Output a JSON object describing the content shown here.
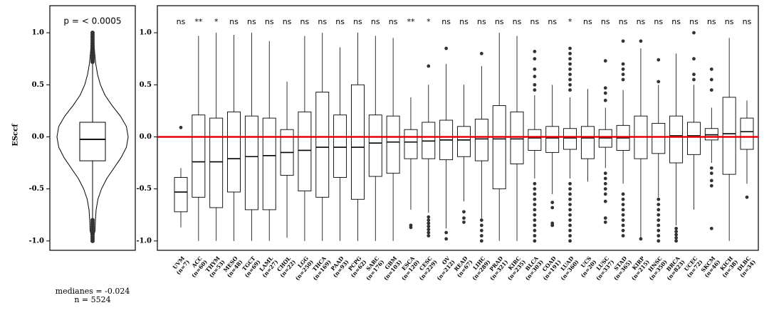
{
  "chart_data": [
    {
      "type": "violin",
      "ylabel": "ESccf",
      "annotation": "p = < 0.0005",
      "annotation_color": "#e8000b",
      "ylim": [
        -1.09,
        1.26
      ],
      "yticks": [
        {
          "value": -1,
          "label": "-1.0"
        },
        {
          "value": -0.5,
          "label": "-0.5"
        },
        {
          "value": 0,
          "label": "0.0"
        },
        {
          "value": 0.5,
          "label": "0.5"
        },
        {
          "value": 1,
          "label": "1.0"
        }
      ],
      "density_y": [
        -1,
        -0.9,
        -0.8,
        -0.7,
        -0.6,
        -0.5,
        -0.4,
        -0.3,
        -0.2,
        -0.1,
        0,
        0.1,
        0.2,
        0.3,
        0.4,
        0.5,
        0.6,
        0.7,
        0.8,
        0.9,
        1
      ],
      "density": [
        0,
        0.07,
        0.08,
        0.1,
        0.15,
        0.25,
        0.4,
        0.6,
        0.8,
        0.95,
        1,
        0.95,
        0.78,
        0.55,
        0.35,
        0.22,
        0.14,
        0.09,
        0.06,
        0.04,
        0
      ],
      "q1": -0.23,
      "median": -0.024,
      "q3": 0.14,
      "whisker_low": -0.78,
      "whisker_high": 0.7,
      "outliers": [
        0.72,
        0.74,
        0.76,
        0.78,
        0.8,
        0.82,
        0.84,
        0.86,
        0.88,
        0.9,
        0.92,
        0.94,
        0.96,
        0.98,
        1,
        -0.8,
        -0.82,
        -0.84,
        -0.86,
        -0.88,
        -0.9,
        -0.92,
        -0.94,
        -0.96,
        -0.98,
        -1
      ],
      "footnotes": [
        "medianes = -0.024",
        "n = 5524"
      ]
    },
    {
      "type": "box",
      "categories": [
        "UVM",
        "ACC",
        "THYM",
        "MESO",
        "TGCT",
        "LAML",
        "CHOL",
        "LGG",
        "THCA",
        "PAAD",
        "PCPG",
        "SARC",
        "GBM",
        "ESCA",
        "CESC",
        "OV",
        "READ",
        "LIHC",
        "PRAD",
        "KIRC",
        "BLCA",
        "COAD",
        "LUAD",
        "UCS",
        "LUSC",
        "STAD",
        "KIRP",
        "HNSC",
        "BRCA",
        "UCEC",
        "SKCM",
        "KICH",
        "DLBC"
      ],
      "n_labels": [
        "(n=7)",
        "(n=60)",
        "(n=53)",
        "(n=48)",
        "(n=69)",
        "(n=27)",
        "(n=22)",
        "(n=250)",
        "(n=169)",
        "(n=93)",
        "(n=62)",
        "(n=176)",
        "(n=103)",
        "(n=120)",
        "(n=229)",
        "(n=212)",
        "(n=67)",
        "(n=289)",
        "(n=321)",
        "(n=235)",
        "(n=303)",
        "(n=191)",
        "(n=360)",
        "(n=20)",
        "(n=337)",
        "(n=365)",
        "(n=215)",
        "(n=350)",
        "(n=823)",
        "(n=72)",
        "(n=46)",
        "(n=38)",
        "(n=34)"
      ],
      "significance": [
        "ns",
        "**",
        "*",
        "ns",
        "ns",
        "ns",
        "ns",
        "ns",
        "ns",
        "ns",
        "ns",
        "ns",
        "ns",
        "**",
        "*",
        "ns",
        "ns",
        "ns",
        "ns",
        "ns",
        "ns",
        "ns",
        "*",
        "ns",
        "ns",
        "ns",
        "ns",
        "ns",
        "ns",
        "ns",
        "ns",
        "ns",
        "ns"
      ],
      "q1": [
        -0.72,
        -0.58,
        -0.68,
        -0.53,
        -0.7,
        -0.7,
        -0.37,
        -0.52,
        -0.58,
        -0.39,
        -0.6,
        -0.38,
        -0.35,
        -0.21,
        -0.21,
        -0.22,
        -0.19,
        -0.23,
        -0.5,
        -0.26,
        -0.13,
        -0.15,
        -0.12,
        -0.21,
        -0.1,
        -0.13,
        -0.21,
        -0.16,
        -0.25,
        -0.17,
        -0.03,
        -0.36,
        -0.12
      ],
      "median": [
        -0.53,
        -0.24,
        -0.24,
        -0.21,
        -0.19,
        -0.18,
        -0.15,
        -0.13,
        -0.1,
        -0.1,
        -0.1,
        -0.06,
        -0.05,
        -0.05,
        -0.04,
        -0.03,
        -0.03,
        -0.02,
        -0.02,
        -0.02,
        -0.01,
        -0.01,
        -0.01,
        -0.01,
        -0.01,
        -0.01,
        0,
        0,
        0.01,
        0.01,
        0.02,
        0.03,
        0.05
      ],
      "q3": [
        -0.39,
        0.21,
        0.18,
        0.24,
        0.2,
        0.18,
        0.07,
        0.24,
        0.43,
        0.21,
        0.5,
        0.21,
        0.2,
        0.07,
        0.14,
        0.16,
        0.1,
        0.17,
        0.3,
        0.24,
        0.07,
        0.1,
        0.08,
        0.1,
        0.07,
        0.11,
        0.2,
        0.13,
        0.2,
        0.14,
        0.08,
        0.38,
        0.18
      ],
      "whisker_low": [
        -0.87,
        -1,
        -1,
        -1,
        -1,
        -1,
        -0.97,
        -1,
        -1,
        -1,
        -1,
        -1,
        -1,
        -0.7,
        -0.73,
        -0.88,
        -0.62,
        -0.78,
        -1,
        -1,
        -0.4,
        -0.55,
        -0.4,
        -0.43,
        -0.3,
        -0.45,
        -0.97,
        -0.58,
        -0.85,
        -0.7,
        -0.25,
        -1,
        -0.45
      ],
      "whisker_high": [
        -0.3,
        0.97,
        1,
        0.98,
        1,
        0.92,
        0.53,
        0.97,
        1,
        0.86,
        1,
        0.97,
        0.95,
        0.38,
        0.5,
        0.7,
        0.5,
        0.68,
        1,
        0.97,
        0.4,
        0.5,
        0.38,
        0.46,
        0.28,
        0.45,
        0.85,
        0.5,
        0.8,
        0.5,
        0.28,
        0.95,
        0.35
      ],
      "outliers": [
        [
          0.09
        ],
        [],
        [],
        [],
        [],
        [],
        [],
        [],
        [],
        [],
        [],
        [],
        [],
        [
          -0.85,
          -0.87
        ],
        [
          0.68,
          -0.77,
          -0.8,
          -0.83,
          -0.86,
          -0.89,
          -0.92,
          -0.95
        ],
        [
          0.85,
          -0.92,
          -0.98
        ],
        [
          -0.72,
          -0.78,
          -0.82
        ],
        [
          0.8,
          -0.8,
          -0.85,
          -0.9,
          -0.95,
          -1
        ],
        [],
        [],
        [
          0.82,
          0.75,
          0.65,
          0.58,
          0.5,
          0.45,
          -0.45,
          -0.5,
          -0.55,
          -0.6,
          -0.65,
          -0.7,
          -0.75,
          -0.8,
          -0.85,
          -0.9,
          -0.95,
          -1
        ],
        [
          -0.63,
          -0.68,
          -0.83,
          -0.85
        ],
        [
          0.85,
          0.8,
          0.75,
          0.7,
          0.65,
          0.6,
          0.55,
          0.5,
          0.45,
          -0.45,
          -0.5,
          -0.55,
          -0.6,
          -0.65,
          -0.7,
          -0.75,
          -0.8,
          -0.85,
          -0.9,
          -0.95,
          -1
        ],
        [],
        [
          0.73,
          0.47,
          0.42,
          0.35,
          -0.35,
          -0.4,
          -0.45,
          -0.5,
          -0.55,
          -0.62,
          -0.78,
          -0.82
        ],
        [
          0.92,
          0.7,
          0.65,
          0.6,
          0.55,
          -0.55,
          -0.6,
          -0.65,
          -0.7,
          -0.75,
          -0.8,
          -0.85,
          -0.9,
          -0.95
        ],
        [
          0.92,
          -0.98
        ],
        [
          0.74,
          0.53,
          -0.6,
          -0.65,
          -0.7,
          -0.75,
          -0.8,
          -0.85,
          -0.9,
          -0.95,
          -1
        ],
        [
          -0.88,
          -0.91,
          -0.94,
          -0.97,
          -1
        ],
        [
          1,
          0.75,
          0.6,
          0.55
        ],
        [
          0.65,
          0.55,
          0.45,
          -0.3,
          -0.35,
          -0.42,
          -0.47,
          -0.88
        ],
        [],
        [
          -0.58
        ]
      ],
      "ylim": [
        -1.09,
        1.26
      ],
      "yticks": [
        {
          "value": -1,
          "label": "-1.0"
        },
        {
          "value": -0.5,
          "label": "-0.5"
        },
        {
          "value": 0,
          "label": "0.0"
        },
        {
          "value": 0.5,
          "label": "0.5"
        },
        {
          "value": 1,
          "label": "1.0"
        }
      ],
      "reference_line": {
        "value": 0,
        "color": "#e8000b"
      }
    }
  ]
}
